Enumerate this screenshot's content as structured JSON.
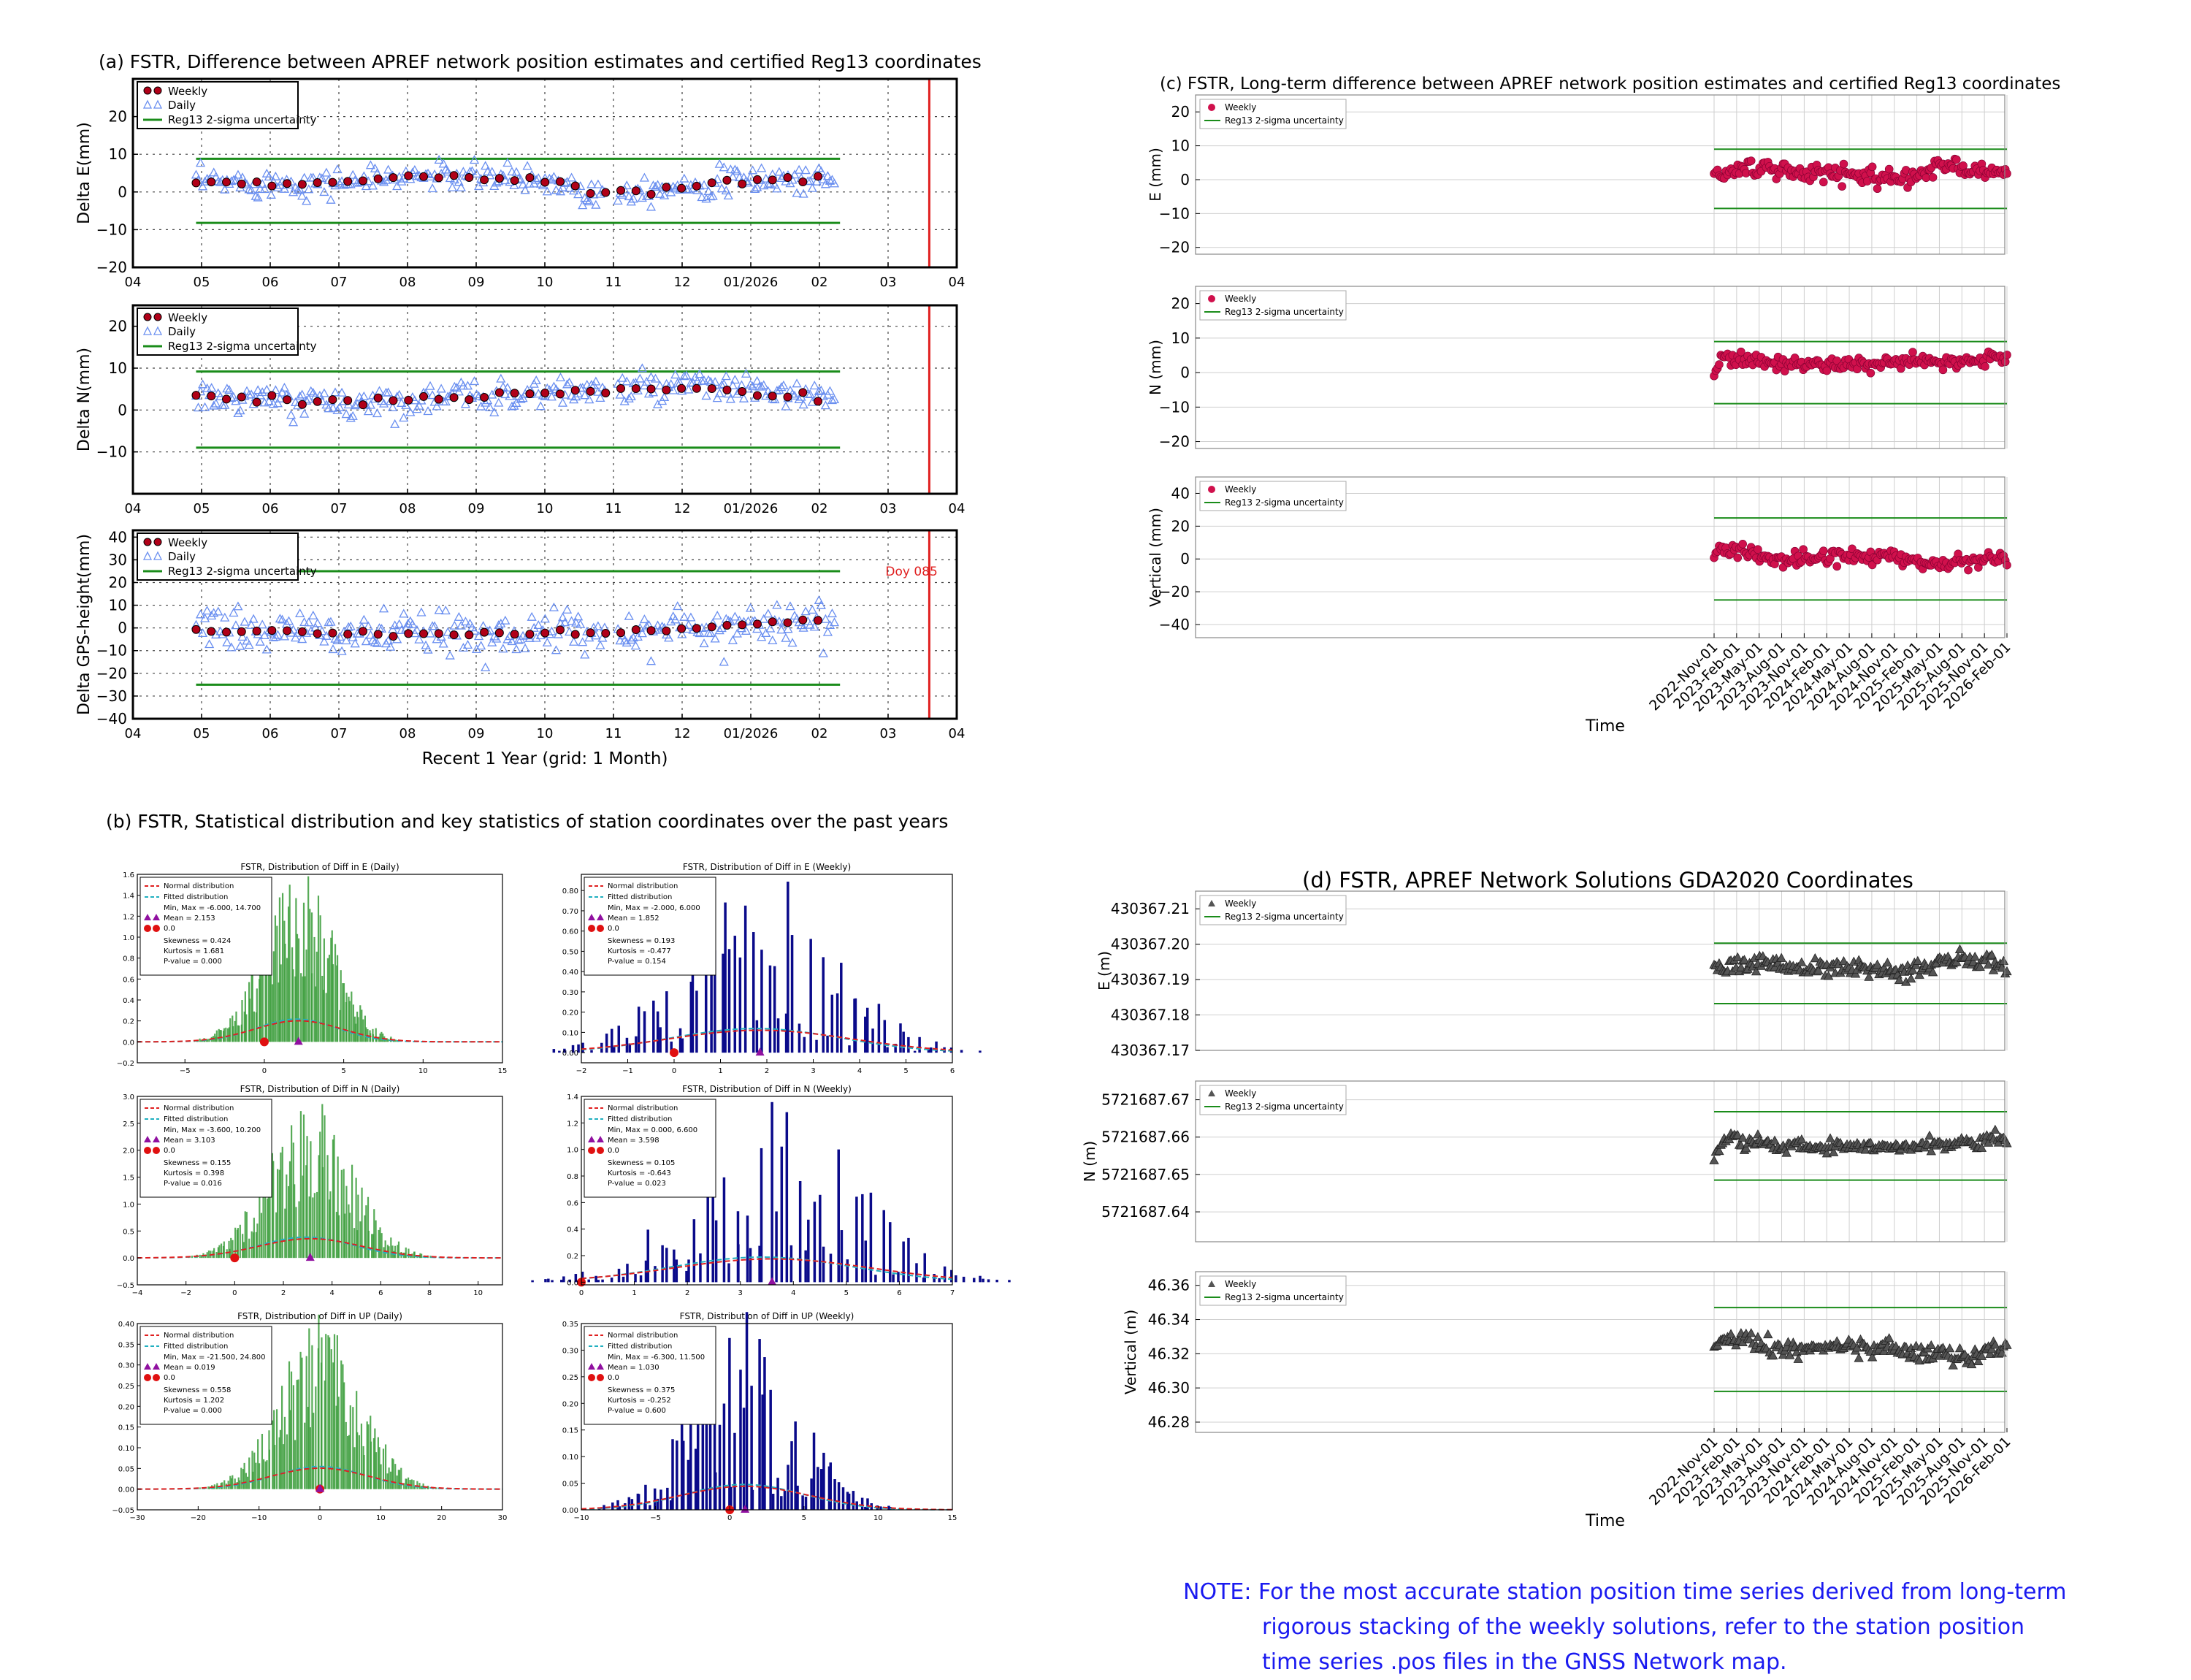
{
  "titles": {
    "a": "(a) FSTR, Difference between APREF network position estimates and certified Reg13 coordinates",
    "b": "(b) FSTR, Statistical distribution and key statistics of station coordinates over the past years",
    "c": "(c) FSTR, Long-term difference between APREF network position estimates and certified Reg13 coordinates",
    "d": "(d) FSTR, APREF Network Solutions GDA2020 Coordinates"
  },
  "note": {
    "line1": "NOTE: For the most accurate station position time series derived from long-term",
    "line2": "rigorous stacking of the weekly solutions, refer to the station position",
    "line3": "time series .pos files in the GNSS Network map."
  },
  "colors": {
    "weekly_marker": "#b00018",
    "daily_marker": "#6a8ff0",
    "sigma_line": "#1a8c1a",
    "cutoff_line": "#e02020",
    "longterm_marker": "#d0104c",
    "gda_marker": "#555555",
    "hist_daily": "#3a9c3a",
    "hist_weekly": "#0a0a8a",
    "normal_curve": "#e02020",
    "fitted_curve": "#20b0c0",
    "note_text": "#1a1af0"
  },
  "chart_data": [
    {
      "id": "a1",
      "type": "scatter",
      "ylabel": "Delta E(mm)",
      "ylim": [
        -20,
        30
      ],
      "yticks": [
        -20,
        -10,
        0,
        10,
        20
      ],
      "xticklabels": [
        "04",
        "05",
        "06",
        "07",
        "08",
        "09",
        "10",
        "11",
        "12",
        "01/2026",
        "02",
        "03",
        "04"
      ],
      "legend": [
        "Weekly",
        "Daily",
        "Reg13 2-sigma uncertainty"
      ],
      "sigma": [
        8.8,
        -8.2
      ],
      "weekly_trend": [
        [
          0,
          2.5
        ],
        [
          0.2,
          2.2
        ],
        [
          0.35,
          4.3
        ],
        [
          0.5,
          3.5
        ],
        [
          0.58,
          2.0
        ],
        [
          0.6,
          -0.5
        ],
        [
          0.75,
          1.5
        ],
        [
          0.9,
          3.5
        ],
        [
          1,
          3.0
        ]
      ],
      "daily_noise": 1.8,
      "annotation": ""
    },
    {
      "id": "a2",
      "type": "scatter",
      "ylabel": "Delta N(mm)",
      "ylim": [
        -20,
        25
      ],
      "yticks": [
        -10,
        0,
        10,
        20
      ],
      "xticklabels": [
        "04",
        "05",
        "06",
        "07",
        "08",
        "09",
        "10",
        "11",
        "12",
        "01/2026",
        "02",
        "03",
        "04"
      ],
      "legend": [
        "Weekly",
        "Daily",
        "Reg13 2-sigma uncertainty"
      ],
      "sigma": [
        9.2,
        -9.0
      ],
      "weekly_trend": [
        [
          0,
          3.0
        ],
        [
          0.25,
          1.5
        ],
        [
          0.45,
          3.5
        ],
        [
          0.6,
          4.5
        ],
        [
          0.8,
          5.5
        ],
        [
          1,
          2.5
        ]
      ],
      "daily_noise": 1.8,
      "annotation": ""
    },
    {
      "id": "a3",
      "type": "scatter",
      "ylabel": "Delta GPS-height(mm)",
      "xlabel": "Recent 1 Year (grid: 1 Month)",
      "ylim": [
        -40,
        43
      ],
      "yticks": [
        -40,
        -30,
        -20,
        -10,
        0,
        10,
        20,
        30,
        40
      ],
      "xticklabels": [
        "04",
        "05",
        "06",
        "07",
        "08",
        "09",
        "10",
        "11",
        "12",
        "01/2026",
        "02",
        "03",
        "04"
      ],
      "legend": [
        "Weekly",
        "Daily",
        "Reg13 2-sigma uncertainty"
      ],
      "sigma": [
        25,
        -25
      ],
      "weekly_trend": [
        [
          0,
          -1
        ],
        [
          0.3,
          -3
        ],
        [
          0.6,
          -2
        ],
        [
          0.8,
          0
        ],
        [
          0.95,
          4
        ],
        [
          1,
          2
        ]
      ],
      "daily_noise": 4.5,
      "annotation": "Doy 085"
    },
    {
      "id": "b1",
      "type": "bar",
      "title": "FSTR, Distribution of Diff in E (Daily)",
      "xlim": [
        -8,
        15
      ],
      "xticks": [
        -5,
        0,
        5,
        10,
        15
      ],
      "ylim": [
        -0.2,
        1.6
      ],
      "yticks": [
        -0.2,
        0.0,
        0.2,
        0.4,
        0.6,
        0.8,
        1.0,
        1.2,
        1.4,
        1.6
      ],
      "stats": [
        "Min, Max  = -6.000, 14.700",
        "Mean       = 2.153",
        "0.0",
        "Skewness  = 0.424",
        "Kurtosis   = 1.681",
        "P-value  = 0.000"
      ],
      "mean": 2.153,
      "sd": 2.2,
      "peak": 1.55,
      "variant": "daily"
    },
    {
      "id": "b2",
      "type": "bar",
      "title": "FSTR, Distribution of Diff in E (Weekly)",
      "xlim": [
        -2,
        6
      ],
      "xticks": [
        -2,
        -1,
        0,
        1,
        2,
        3,
        4,
        5,
        6
      ],
      "ylim": [
        -0.05,
        0.88
      ],
      "yticks": [
        0.0,
        0.1,
        0.2,
        0.3,
        0.4,
        0.5,
        0.6,
        0.7,
        0.8
      ],
      "stats": [
        "Min, Max  = -2.000, 6.000",
        "Mean       = 1.852",
        "0.0",
        "Skewness  = 0.193",
        "Kurtosis   = -0.477",
        "P-value  = 0.154"
      ],
      "mean": 1.852,
      "sd": 1.6,
      "peak": 0.85,
      "variant": "weekly"
    },
    {
      "id": "b3",
      "type": "bar",
      "title": "FSTR, Distribution of Diff in N (Daily)",
      "xlim": [
        -4,
        11
      ],
      "xticks": [
        -4,
        -2,
        0,
        2,
        4,
        6,
        8,
        10
      ],
      "ylim": [
        -0.5,
        3.0
      ],
      "yticks": [
        -0.5,
        0.0,
        0.5,
        1.0,
        1.5,
        2.0,
        2.5,
        3.0
      ],
      "stats": [
        "Min, Max  = -3.600, 10.200",
        "Mean       = 3.103",
        "0.0",
        "Skewness  = 0.155",
        "Kurtosis   = 0.398",
        "P-value  = 0.016"
      ],
      "mean": 3.103,
      "sd": 1.7,
      "peak": 2.75,
      "variant": "daily"
    },
    {
      "id": "b4",
      "type": "bar",
      "title": "FSTR, Distribution of Diff in N (Weekly)",
      "xlim": [
        0,
        7
      ],
      "xticks": [
        0,
        1,
        2,
        3,
        4,
        5,
        6,
        7
      ],
      "ylim": [
        -0.02,
        1.4
      ],
      "yticks": [
        0.0,
        0.2,
        0.4,
        0.6,
        0.8,
        1.0,
        1.2,
        1.4
      ],
      "stats": [
        "Min, Max  = 0.000, 6.600",
        "Mean       = 3.598",
        "0.0",
        "Skewness  = 0.105",
        "Kurtosis   = -0.643",
        "P-value  = 0.023"
      ],
      "mean": 3.598,
      "sd": 1.5,
      "peak": 1.35,
      "variant": "weekly"
    },
    {
      "id": "b5",
      "type": "bar",
      "title": "FSTR, Distribution of Diff in UP (Daily)",
      "xlim": [
        -30,
        30
      ],
      "xticks": [
        -30,
        -20,
        -10,
        0,
        10,
        20,
        30
      ],
      "ylim": [
        -0.05,
        0.4
      ],
      "yticks": [
        -0.05,
        0.0,
        0.05,
        0.1,
        0.15,
        0.2,
        0.25,
        0.3,
        0.35,
        0.4
      ],
      "stats": [
        "Min, Max  = -21.500, 24.800",
        "Mean       = 0.019",
        "0.0",
        "Skewness  = 0.558",
        "Kurtosis   = 1.202",
        "P-value  = 0.000"
      ],
      "mean": 0.019,
      "sd": 6.5,
      "peak": 0.39,
      "variant": "daily"
    },
    {
      "id": "b6",
      "type": "bar",
      "title": "FSTR, Distribution of Diff in UP (Weekly)",
      "xlim": [
        -10,
        15
      ],
      "xticks": [
        -10,
        -5,
        0,
        5,
        10,
        15
      ],
      "ylim": [
        0.0,
        0.35
      ],
      "yticks": [
        0.0,
        0.05,
        0.1,
        0.15,
        0.2,
        0.25,
        0.3,
        0.35
      ],
      "stats": [
        "Min, Max  = -6.300, 11.500",
        "Mean       = 1.030",
        "0.0",
        "Skewness  = 0.375",
        "Kurtosis   = -0.252",
        "P-value  = 0.600"
      ],
      "mean": 1.03,
      "sd": 3.5,
      "peak": 0.34,
      "variant": "weekly"
    },
    {
      "id": "c1",
      "type": "scatter",
      "ylabel": "E (mm)",
      "ylim": [
        -22,
        25
      ],
      "yticks": [
        -20,
        -10,
        0,
        10,
        20
      ],
      "legend": [
        "Weekly",
        "Reg13 2-sigma uncertainty"
      ],
      "sigma": [
        9,
        -8.5
      ],
      "base": 2,
      "noise": 1.3,
      "trend": [
        [
          0,
          1
        ],
        [
          0.1,
          3.5
        ],
        [
          0.3,
          2
        ],
        [
          0.5,
          1.5
        ],
        [
          0.65,
          0.5
        ],
        [
          0.8,
          4
        ],
        [
          1,
          2
        ]
      ]
    },
    {
      "id": "c2",
      "type": "scatter",
      "ylabel": "N (mm)",
      "ylim": [
        -22,
        25
      ],
      "yticks": [
        -20,
        -10,
        0,
        10,
        20
      ],
      "legend": [
        "Weekly",
        "Reg13 2-sigma uncertainty"
      ],
      "sigma": [
        9,
        -9
      ],
      "base": 3,
      "noise": 1.0,
      "trend": [
        [
          0,
          0.5
        ],
        [
          0.04,
          5
        ],
        [
          0.2,
          2.5
        ],
        [
          0.5,
          2.5
        ],
        [
          0.8,
          3
        ],
        [
          1,
          4.5
        ]
      ]
    },
    {
      "id": "c3",
      "type": "scatter",
      "ylabel": "Vertical (mm)",
      "ylim": [
        -48,
        50
      ],
      "yticks": [
        -40,
        -20,
        0,
        20,
        40
      ],
      "legend": [
        "Weekly",
        "Reg13 2-sigma uncertainty"
      ],
      "sigma": [
        25,
        -25
      ],
      "base": 0,
      "noise": 2.2,
      "trend": [
        [
          0,
          4
        ],
        [
          0.1,
          6
        ],
        [
          0.2,
          -1
        ],
        [
          0.4,
          2
        ],
        [
          0.6,
          1
        ],
        [
          0.75,
          -3
        ],
        [
          0.9,
          -1
        ],
        [
          1,
          1
        ]
      ]
    },
    {
      "id": "d1",
      "type": "scatter",
      "ylabel": "E (m)",
      "ylim": [
        430367.17,
        430367.215
      ],
      "yticks": [
        430367.17,
        430367.18,
        430367.19,
        430367.2,
        430367.21
      ],
      "yticklabels": [
        "430367.17",
        "430367.18",
        "430367.19",
        "430367.20",
        "430367.21"
      ],
      "legend": [
        "Weekly",
        "Reg13 2-sigma uncertainty"
      ],
      "sigma": [
        430367.2003,
        430367.1832
      ],
      "base": 430367.193,
      "noise": 0.0012,
      "trend": [
        [
          0,
          430367.1925
        ],
        [
          0.15,
          430367.195
        ],
        [
          0.3,
          430367.193
        ],
        [
          0.5,
          430367.193
        ],
        [
          0.65,
          430367.192
        ],
        [
          0.82,
          430367.196
        ],
        [
          1,
          430367.1935
        ]
      ]
    },
    {
      "id": "d2",
      "type": "scatter",
      "ylabel": "N (m)",
      "ylim": [
        5721687.632,
        5721687.675
      ],
      "yticks": [
        5721687.64,
        5721687.65,
        5721687.66,
        5721687.67
      ],
      "yticklabels": [
        "5721687.64",
        "5721687.65",
        "5721687.66",
        "5721687.67"
      ],
      "legend": [
        "Weekly",
        "Reg13 2-sigma uncertainty"
      ],
      "sigma": [
        5721687.6668,
        5721687.6485
      ],
      "base": 5721687.658,
      "noise": 0.0009,
      "trend": [
        [
          0,
          5721687.6545
        ],
        [
          0.04,
          5721687.6595
        ],
        [
          0.2,
          5721687.6575
        ],
        [
          0.5,
          5721687.6575
        ],
        [
          0.8,
          5721687.658
        ],
        [
          1,
          5721687.6595
        ]
      ]
    },
    {
      "id": "d3",
      "type": "scatter",
      "ylabel": "Vertical (m)",
      "ylim": [
        46.274,
        46.368
      ],
      "yticks": [
        46.28,
        46.3,
        46.32,
        46.34,
        46.36
      ],
      "yticklabels": [
        "46.28",
        "46.30",
        "46.32",
        "46.34",
        "46.36"
      ],
      "legend": [
        "Weekly",
        "Reg13 2-sigma uncertainty"
      ],
      "sigma": [
        46.347,
        46.298
      ],
      "base": 46.322,
      "noise": 0.0025,
      "trend": [
        [
          0,
          46.327
        ],
        [
          0.12,
          46.329
        ],
        [
          0.2,
          46.321
        ],
        [
          0.45,
          46.324
        ],
        [
          0.6,
          46.323
        ],
        [
          0.75,
          46.319
        ],
        [
          0.88,
          46.318
        ],
        [
          1,
          46.324
        ]
      ]
    }
  ],
  "time_axis": {
    "ticklabels": [
      "2022-Nov-01",
      "2023-Feb-01",
      "2023-May-01",
      "2023-Aug-01",
      "2023-Nov-01",
      "2024-Feb-01",
      "2024-May-01",
      "2024-Aug-01",
      "2024-Nov-01",
      "2025-Feb-01",
      "2025-May-01",
      "2025-Aug-01",
      "2025-Nov-01",
      "2026-Feb-01"
    ],
    "xlabel": "Time"
  }
}
